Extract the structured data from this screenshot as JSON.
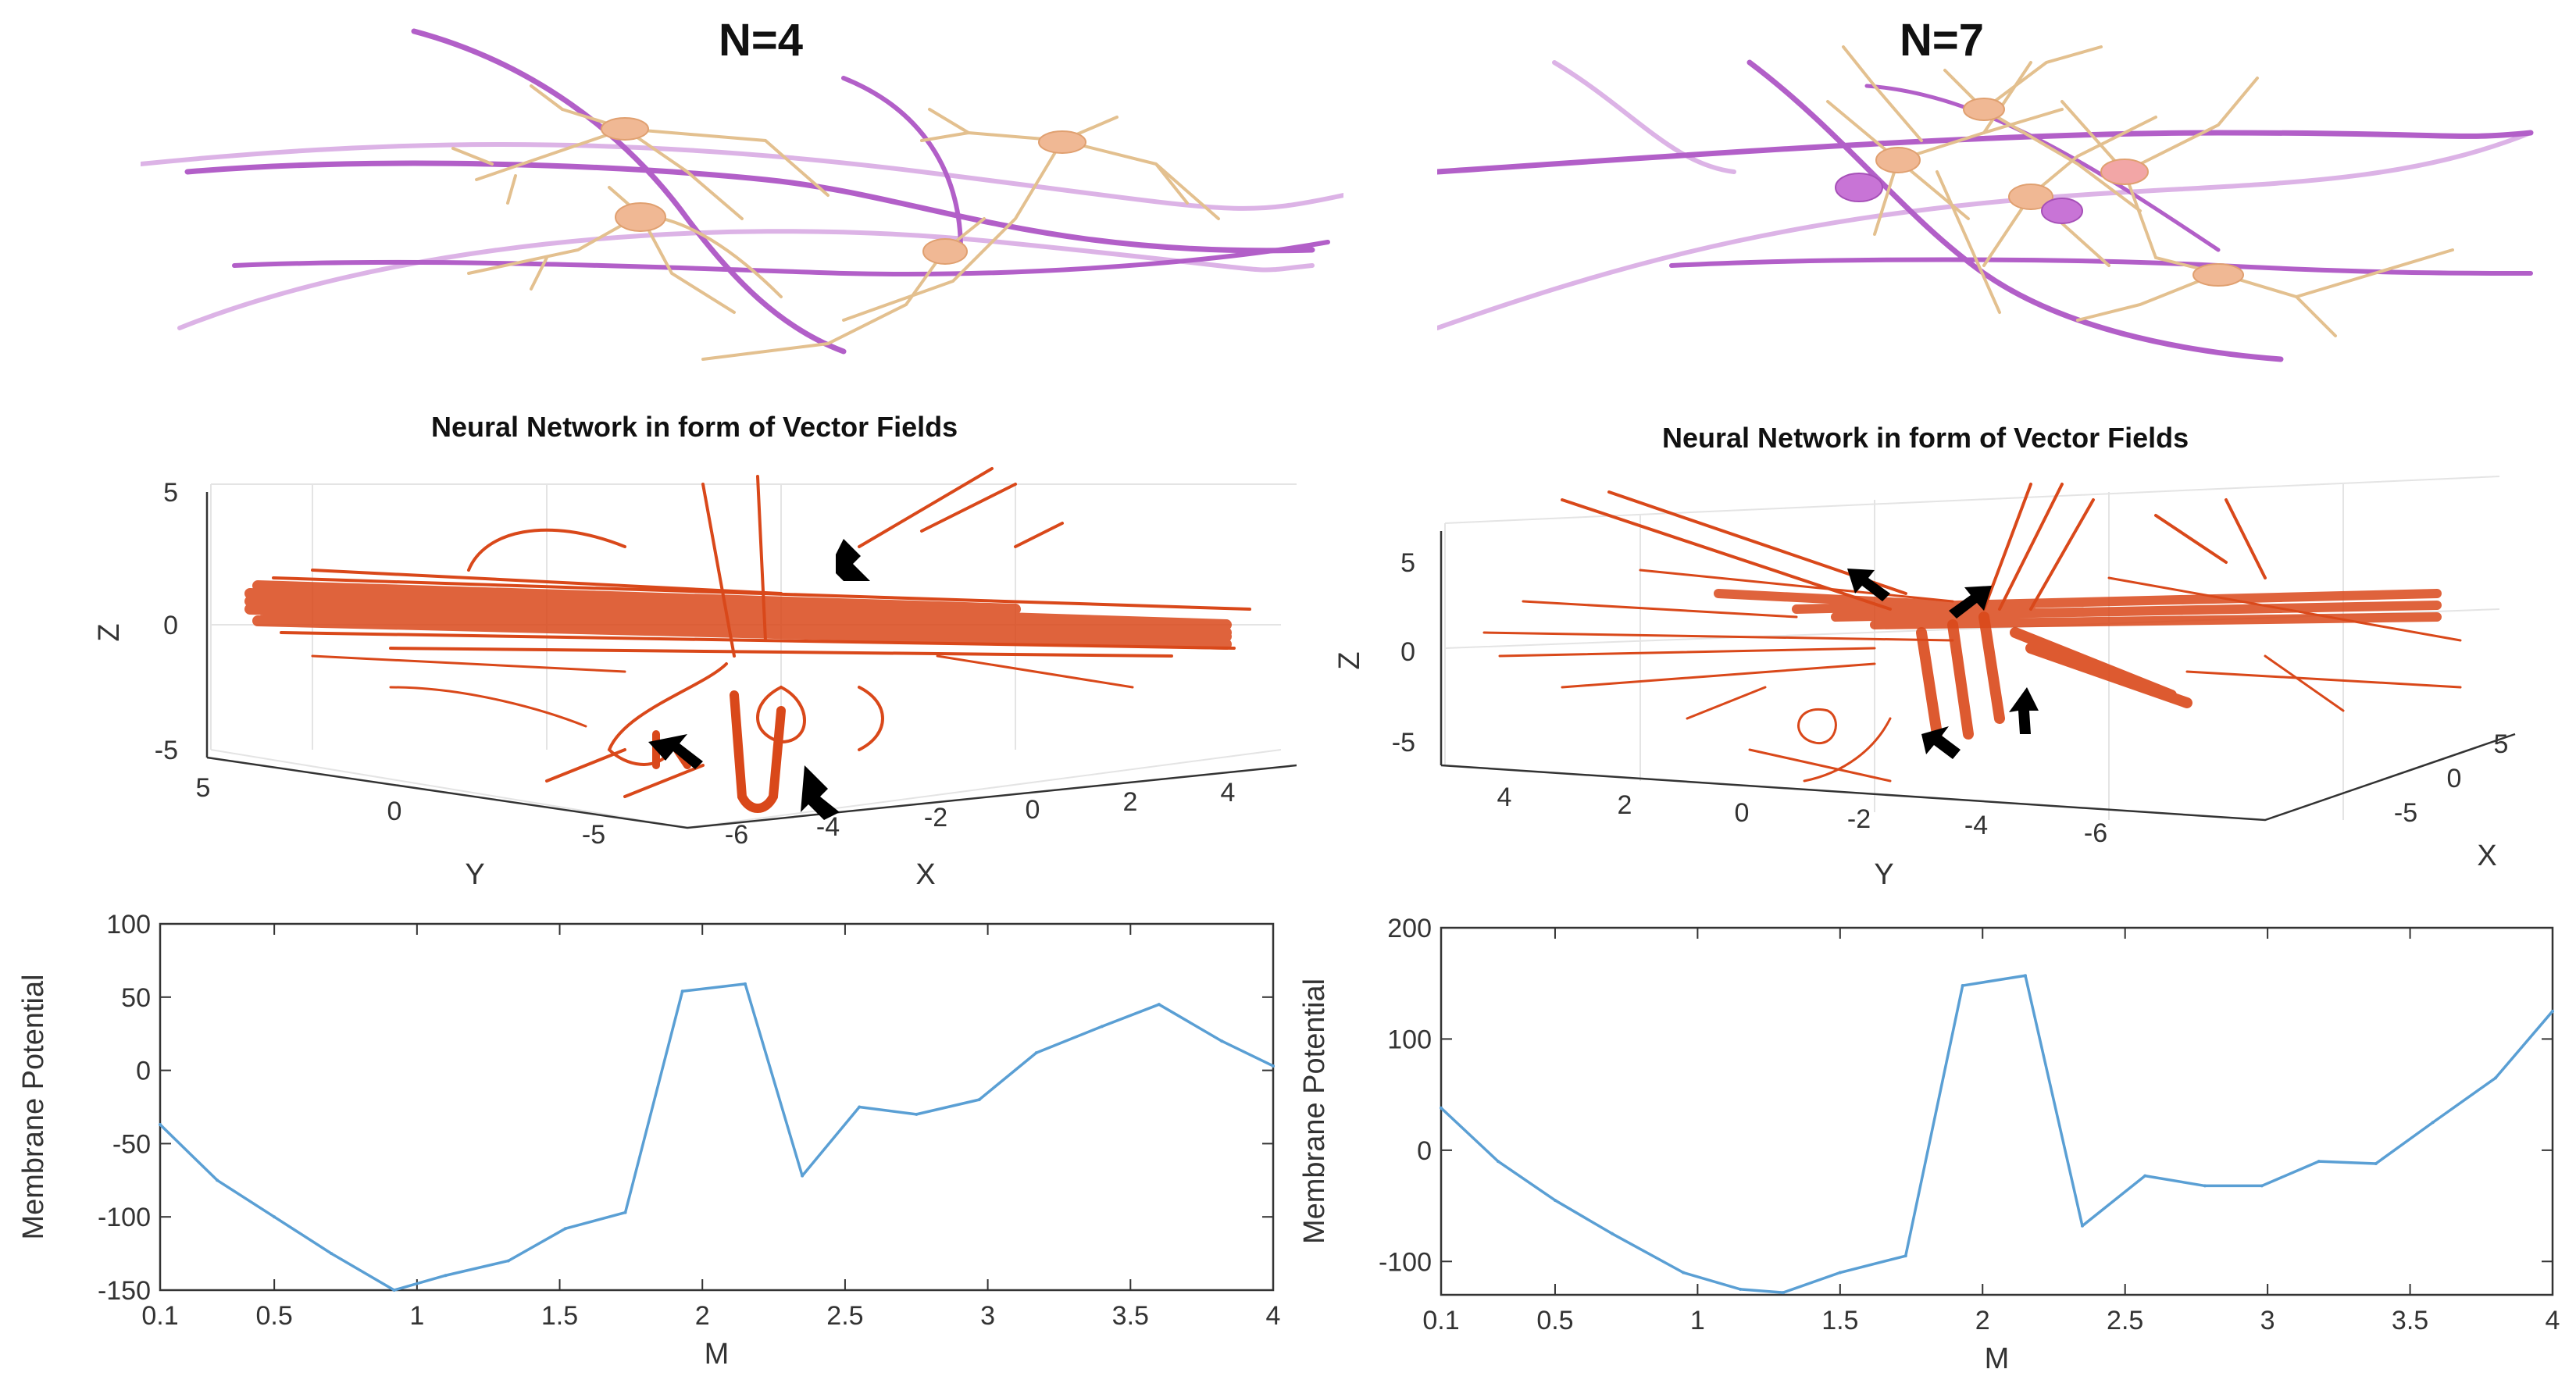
{
  "panels": [
    {
      "id": "left",
      "network_label": "N=4",
      "vector_field": {
        "title": "Neural Network in form of Vector Fields",
        "z_label": "Z",
        "z_ticks": [
          "5",
          "0",
          "-5"
        ],
        "y_label": "Y",
        "y_ticks": [
          "5",
          "0",
          "-5"
        ],
        "x_label": "X",
        "x_ticks": [
          "-6",
          "-4",
          "-2",
          "0",
          "2",
          "4"
        ]
      }
    },
    {
      "id": "right",
      "network_label": "N=7",
      "vector_field": {
        "title": "Neural Network in form of Vector Fields",
        "z_label": "Z",
        "z_ticks": [
          "5",
          "0",
          "-5"
        ],
        "y_label": "Y",
        "y_ticks": [
          "4",
          "2",
          "0",
          "-2",
          "-4",
          "-6"
        ],
        "x_label": "X",
        "x_ticks": [
          "5",
          "0",
          "-5"
        ]
      }
    }
  ],
  "colors": {
    "axon": "#b25fc8",
    "axon_light": "#dcb3e6",
    "dendrite": "#e3c08f",
    "soma": "#f0b894",
    "vector_field": "#d9481a",
    "arrow": "#000000",
    "line": "#5a9fd4",
    "axis": "#333333"
  },
  "chart_data": [
    {
      "type": "line",
      "panel": "N=4",
      "xlabel": "M",
      "ylabel": "Membrane Potential",
      "xlim": [
        0.1,
        4
      ],
      "ylim": [
        -150,
        100
      ],
      "xticks": [
        0.1,
        0.5,
        1,
        1.5,
        2,
        2.5,
        3,
        3.5,
        4
      ],
      "xtick_labels": [
        "0.1",
        "0.5",
        "1",
        "1.5",
        "2",
        "2.5",
        "3",
        "3.5",
        "4"
      ],
      "yticks": [
        100,
        50,
        0,
        -50,
        -100,
        -150
      ],
      "ytick_labels": [
        "100",
        "50",
        "0",
        "-50",
        "-100",
        "-150"
      ],
      "x": [
        0.1,
        0.3,
        0.5,
        0.7,
        0.92,
        1.1,
        1.32,
        1.52,
        1.73,
        1.93,
        2.15,
        2.35,
        2.55,
        2.75,
        2.97,
        3.17,
        3.4,
        3.6,
        3.82,
        4.0
      ],
      "y": [
        -37,
        -75,
        -100,
        -125,
        -150,
        -140,
        -130,
        -108,
        -97,
        54,
        59,
        -72,
        -25,
        -30,
        -20,
        12,
        30,
        45,
        20,
        3
      ]
    },
    {
      "type": "line",
      "panel": "N=7",
      "xlabel": "M",
      "ylabel": "Membrane Potential",
      "xlim": [
        0.1,
        4
      ],
      "ylim": [
        -130,
        200
      ],
      "xticks": [
        0.1,
        0.5,
        1,
        1.5,
        2,
        2.5,
        3,
        3.5,
        4
      ],
      "xtick_labels": [
        "0.1",
        "0.5",
        "1",
        "1.5",
        "2",
        "2.5",
        "3",
        "3.5",
        "4"
      ],
      "yticks": [
        200,
        100,
        0,
        -100
      ],
      "ytick_labels": [
        "200",
        "100",
        "0",
        "-100"
      ],
      "x": [
        0.1,
        0.3,
        0.5,
        0.7,
        0.95,
        1.15,
        1.3,
        1.5,
        1.73,
        1.93,
        2.15,
        2.35,
        2.57,
        2.78,
        2.98,
        3.18,
        3.38,
        3.58,
        3.8,
        4.0
      ],
      "y": [
        38,
        -10,
        -45,
        -75,
        -110,
        -125,
        -128,
        -110,
        -95,
        148,
        157,
        -68,
        -23,
        -32,
        -32,
        -10,
        -12,
        25,
        65,
        125
      ]
    }
  ]
}
